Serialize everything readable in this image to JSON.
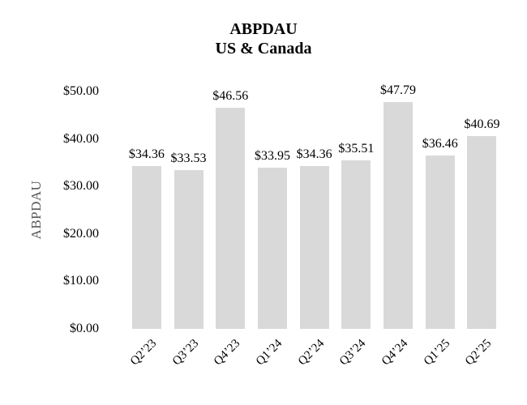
{
  "chart": {
    "title_line1": "ABPDAU",
    "title_line2": "US & Canada",
    "y_axis_title": "ABPDAU"
  },
  "chart_data": {
    "type": "bar",
    "title": "ABPDAU",
    "subtitle": "US & Canada",
    "categories": [
      "Q2’23",
      "Q3’23",
      "Q4’23",
      "Q1’24",
      "Q2’24",
      "Q3’24",
      "Q4’24",
      "Q1’25",
      "Q2’25"
    ],
    "values": [
      34.36,
      33.53,
      46.56,
      33.95,
      34.36,
      35.51,
      47.79,
      36.46,
      40.69
    ],
    "value_labels": [
      "$34.36",
      "$33.53",
      "$46.56",
      "$33.95",
      "$34.36",
      "$35.51",
      "$47.79",
      "$36.46",
      "$40.69"
    ],
    "xlabel": "",
    "ylabel": "ABPDAU",
    "ylim": [
      0,
      50
    ],
    "ytick_values": [
      0,
      10,
      20,
      30,
      40,
      50
    ],
    "ytick_labels": [
      "$0.00",
      "$10.00",
      "$20.00",
      "$30.00",
      "$40.00",
      "$50.00"
    ],
    "grid": false,
    "legend": false,
    "bar_color": "#d9d9d9",
    "text_color": "#000000",
    "axis_title_color": "#595959",
    "background_color": "#ffffff"
  }
}
